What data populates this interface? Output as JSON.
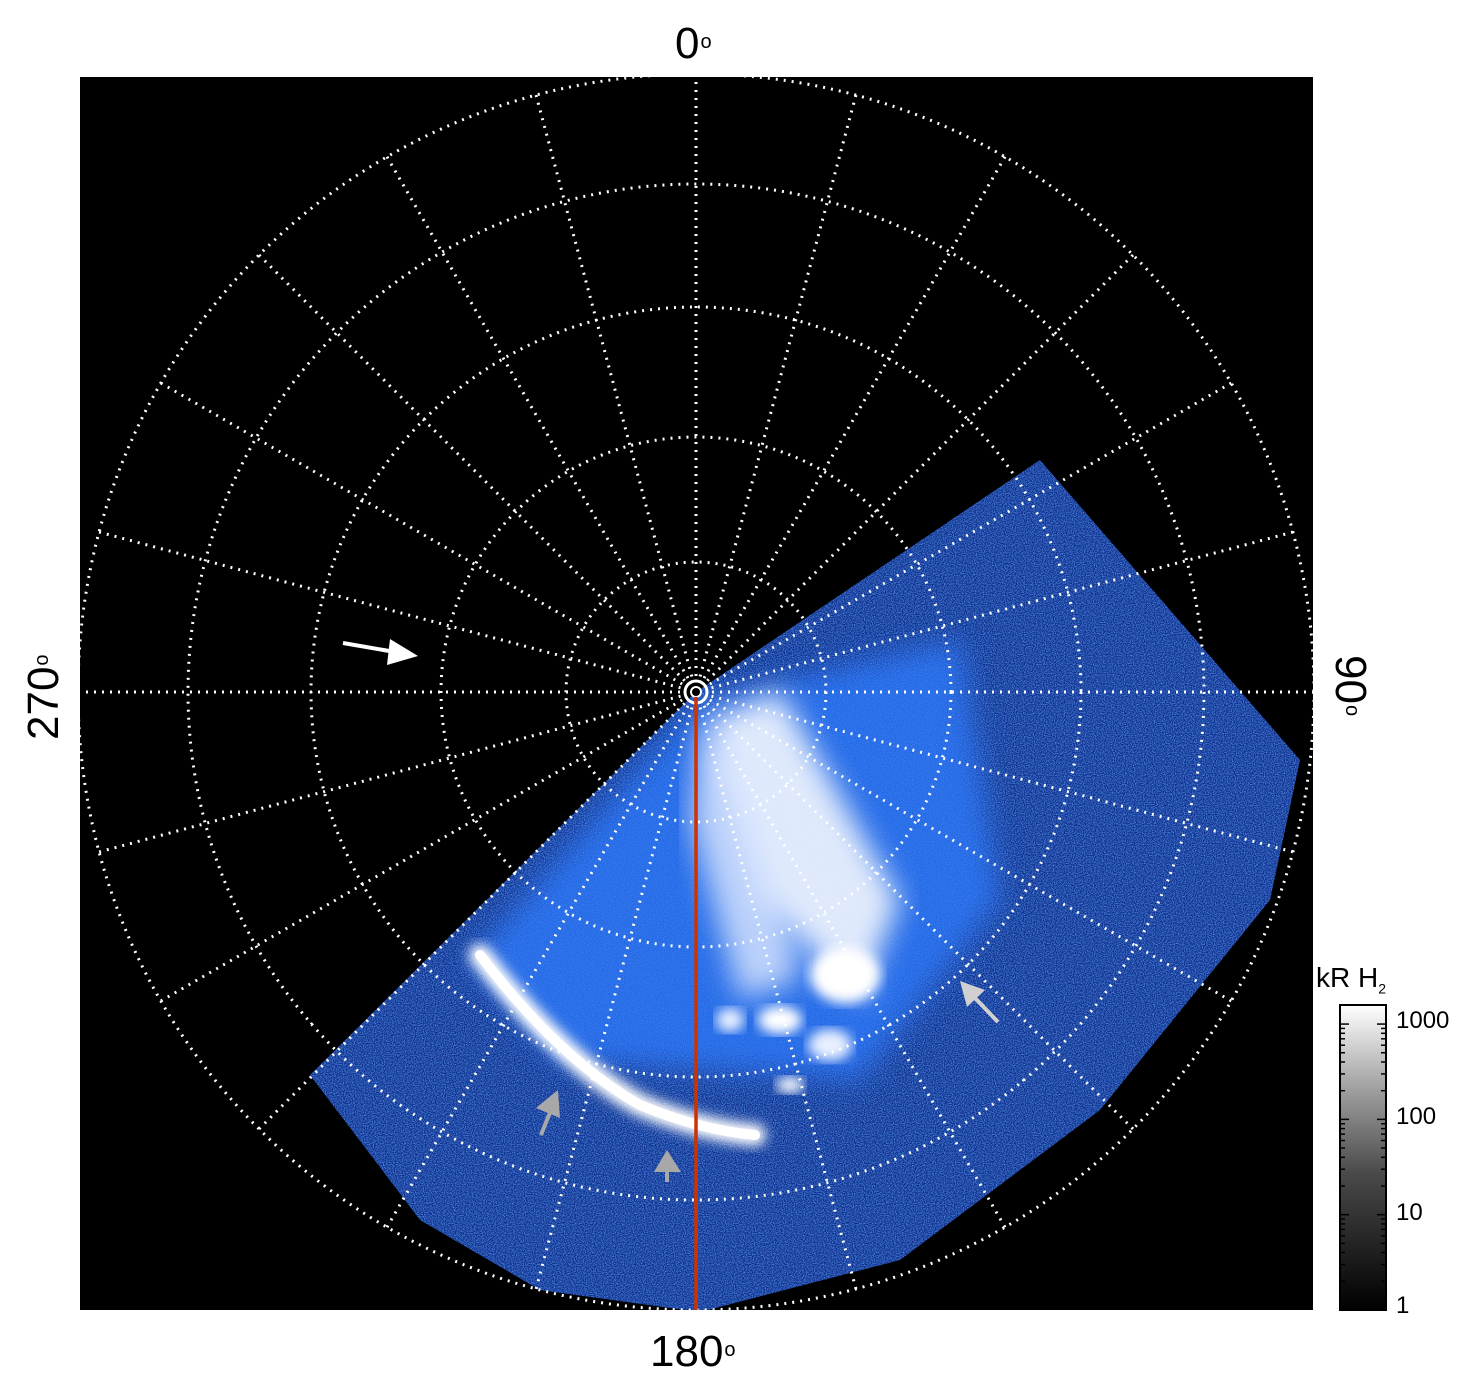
{
  "axis_labels": {
    "top": "0",
    "bottom": "180",
    "left": "270",
    "right": "90",
    "degree_symbol": "o"
  },
  "colorbar": {
    "unit": "kR H",
    "unit_subscript": "2",
    "ticks": [
      "1000",
      "100",
      "10",
      "1"
    ]
  },
  "colors": {
    "background": "#000000",
    "grid": "#ffffff",
    "emission_low": "#0a2fa0",
    "emission_mid": "#2f7bff",
    "emission_high": "#ffffff",
    "meridian_line": "#cc3300",
    "arrow_white": "#ffffff",
    "arrow_gray": "#a0a0a0"
  },
  "markers": {
    "white_arrows": 1,
    "gray_arrows": 3
  }
}
